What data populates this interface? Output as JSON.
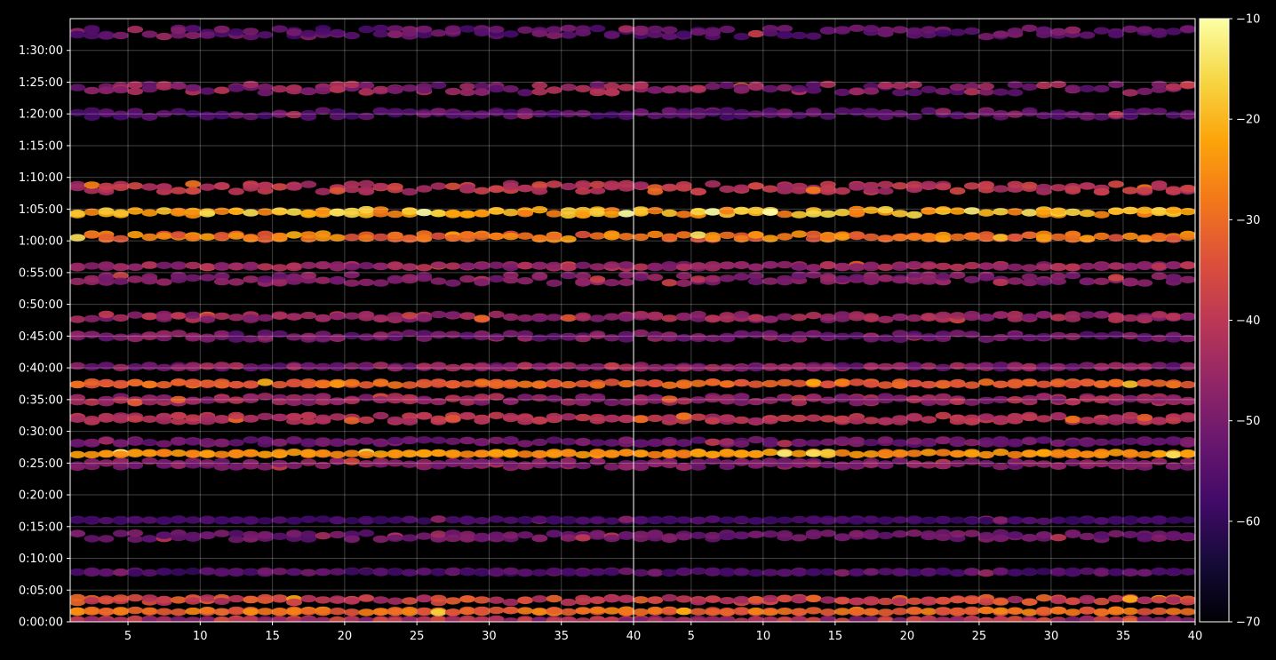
{
  "chart_data": {
    "type": "heatmap",
    "title": "",
    "xlabel": "",
    "ylabel": "",
    "background": "#000000",
    "colormap": "inferno",
    "grid": true,
    "colorbar": {
      "position": "right",
      "range": [
        -70,
        -10
      ],
      "ticks": [
        -70,
        -60,
        -50,
        -40,
        -30,
        -20,
        -10
      ],
      "tick_labels": [
        "−70",
        "−60",
        "−50",
        "−40",
        "−30",
        "−20",
        "−10"
      ]
    },
    "y_axis": {
      "unit": "h:mm:ss",
      "range_seconds": [
        0,
        5700
      ],
      "ticks_seconds": [
        0,
        300,
        600,
        900,
        1200,
        1500,
        1800,
        2100,
        2400,
        2700,
        3000,
        3300,
        3600,
        3900,
        4200,
        4500,
        4800,
        5100,
        5400
      ],
      "tick_labels": [
        "0:00:00",
        "0:05:00",
        "0:10:00",
        "0:15:00",
        "0:20:00",
        "0:25:00",
        "0:30:00",
        "0:35:00",
        "0:40:00",
        "0:45:00",
        "0:50:00",
        "0:55:00",
        "1:00:00",
        "1:05:00",
        "1:10:00",
        "1:15:00",
        "1:20:00",
        "1:25:00",
        "1:30:00"
      ]
    },
    "panels": [
      {
        "name": "left",
        "x_range": [
          1,
          40
        ],
        "x_ticks": [
          5,
          10,
          15,
          20,
          25,
          30,
          35,
          40
        ],
        "x_tick_labels": [
          "5",
          "10",
          "15",
          "20",
          "25",
          "30",
          "35",
          "40"
        ]
      },
      {
        "name": "right",
        "x_range": [
          1,
          40
        ],
        "x_ticks": [
          5,
          10,
          15,
          20,
          25,
          30,
          35,
          40
        ],
        "x_tick_labels": [
          "5",
          "10",
          "15",
          "20",
          "25",
          "30",
          "35",
          "40"
        ]
      }
    ],
    "bands": [
      {
        "time": 15,
        "spread": 12,
        "level_range": [
          -50,
          -35
        ]
      },
      {
        "time": 100,
        "spread": 12,
        "level_range": [
          -35,
          -25
        ]
      },
      {
        "time": 205,
        "spread": 22,
        "level_range": [
          -45,
          -30
        ]
      },
      {
        "time": 470,
        "spread": 10,
        "level_range": [
          -60,
          -50
        ]
      },
      {
        "time": 810,
        "spread": 30,
        "level_range": [
          -55,
          -48
        ]
      },
      {
        "time": 960,
        "spread": 10,
        "level_range": [
          -60,
          -55
        ]
      },
      {
        "time": 1490,
        "spread": 30,
        "level_range": [
          -52,
          -45
        ]
      },
      {
        "time": 1590,
        "spread": 12,
        "level_range": [
          -28,
          -22
        ]
      },
      {
        "time": 1700,
        "spread": 20,
        "level_range": [
          -55,
          -48
        ]
      },
      {
        "time": 1920,
        "spread": 30,
        "level_range": [
          -45,
          -38
        ]
      },
      {
        "time": 2100,
        "spread": 30,
        "level_range": [
          -50,
          -40
        ]
      },
      {
        "time": 2250,
        "spread": 15,
        "level_range": [
          -35,
          -28
        ]
      },
      {
        "time": 2410,
        "spread": 12,
        "level_range": [
          -55,
          -42
        ]
      },
      {
        "time": 2700,
        "spread": 30,
        "level_range": [
          -55,
          -45
        ]
      },
      {
        "time": 2880,
        "spread": 25,
        "level_range": [
          -50,
          -40
        ]
      },
      {
        "time": 3240,
        "spread": 40,
        "level_range": [
          -52,
          -45
        ]
      },
      {
        "time": 3360,
        "spread": 15,
        "level_range": [
          -50,
          -40
        ]
      },
      {
        "time": 3640,
        "spread": 25,
        "level_range": [
          -35,
          -22
        ]
      },
      {
        "time": 3870,
        "spread": 25,
        "level_range": [
          -28,
          -15
        ]
      },
      {
        "time": 4100,
        "spread": 40,
        "level_range": [
          -45,
          -35
        ]
      },
      {
        "time": 4800,
        "spread": 30,
        "level_range": [
          -58,
          -50
        ]
      },
      {
        "time": 5040,
        "spread": 40,
        "level_range": [
          -55,
          -40
        ]
      },
      {
        "time": 5570,
        "spread": 40,
        "level_range": [
          -58,
          -48
        ]
      }
    ]
  }
}
